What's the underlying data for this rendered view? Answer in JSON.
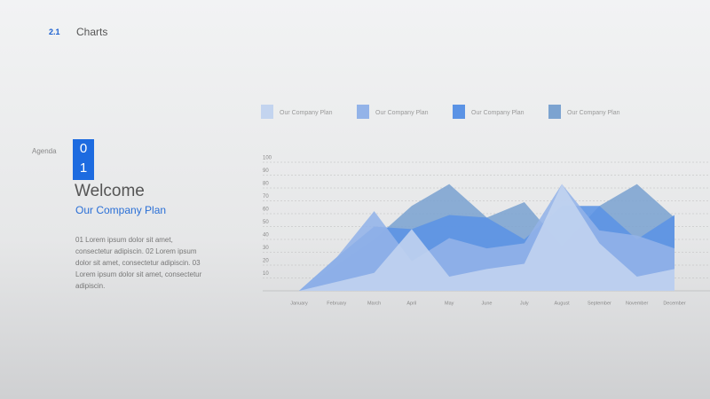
{
  "header": {
    "number": "2.1",
    "title": "Charts"
  },
  "sidebar": {
    "label": "Agenda",
    "index": [
      "0",
      "1"
    ],
    "heading": "Welcome",
    "subheading": "Our Company Plan",
    "text": "01 Lorem ipsum dolor sit amet, consectetur adipiscin. 02 Lorem ipsum dolor sit amet, consectetur adipiscin. 03 Lorem ipsum dolor sit amet, consectetur adipiscin."
  },
  "chart_data": {
    "type": "area",
    "categories": [
      "January",
      "February",
      "March",
      "April",
      "May",
      "June",
      "July",
      "August",
      "September",
      "November",
      "December"
    ],
    "series": [
      {
        "name": "Our Company Plan",
        "color": "#c3d4ef",
        "values": [
          0,
          7,
          14,
          48,
          11,
          17,
          21,
          83,
          37,
          11,
          17
        ]
      },
      {
        "name": "Our Company Plan",
        "color": "#93b3e8",
        "values": [
          0,
          26,
          62,
          23,
          41,
          33,
          37,
          83,
          47,
          43,
          33
        ]
      },
      {
        "name": "Our Company Plan",
        "color": "#5b93e5",
        "values": [
          0,
          26,
          50,
          48,
          59,
          57,
          40,
          66,
          66,
          40,
          59
        ]
      },
      {
        "name": "Our Company Plan",
        "color": "#7ca3d0",
        "values": [
          0,
          20,
          40,
          66,
          83,
          57,
          69,
          35,
          66,
          83,
          57
        ]
      }
    ],
    "ylim": [
      0,
      100
    ],
    "yticks": [
      10,
      20,
      30,
      40,
      50,
      60,
      70,
      80,
      90,
      100
    ],
    "grid": true
  }
}
